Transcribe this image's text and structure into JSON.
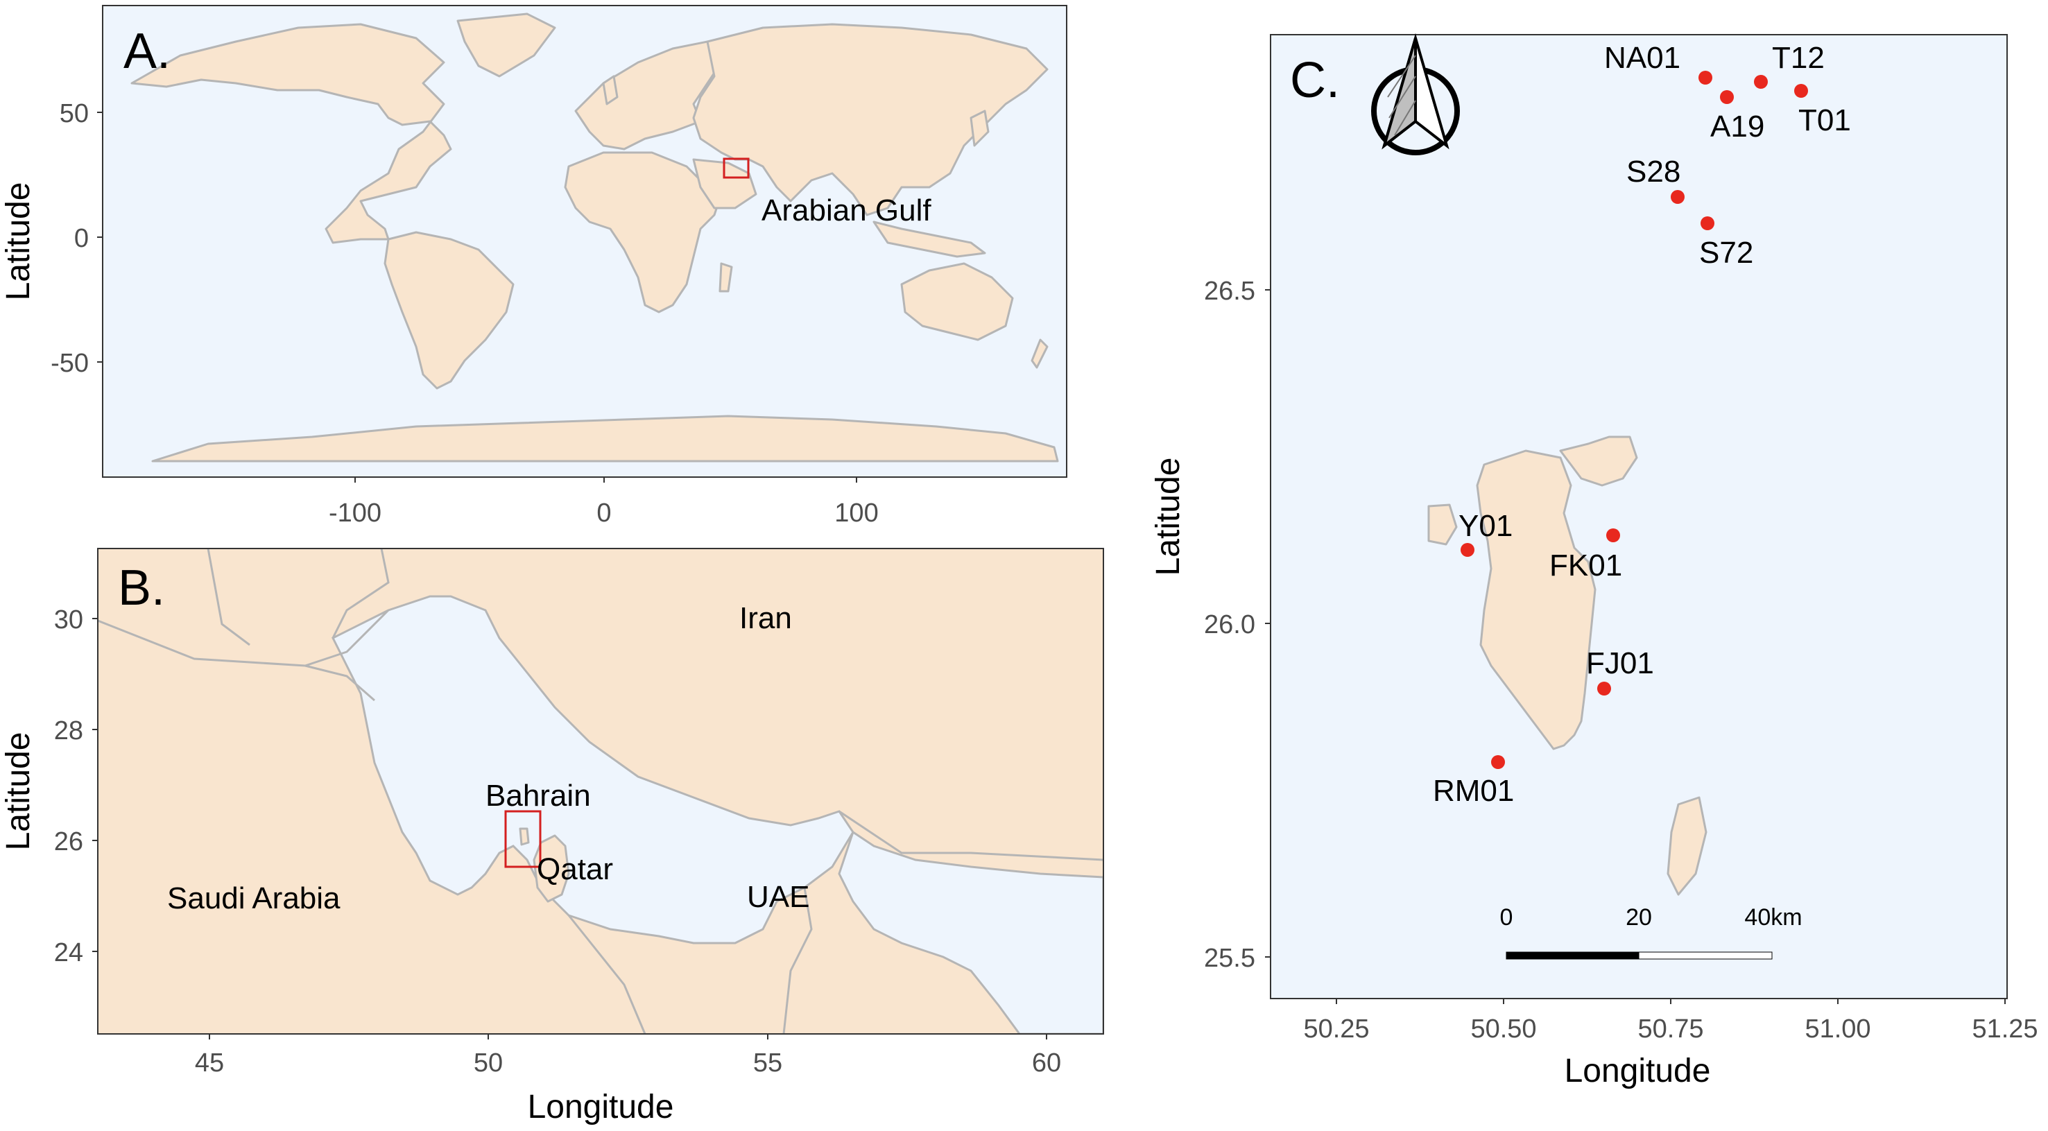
{
  "colors": {
    "land": "#f9e5cf",
    "sea": "#eef5fd",
    "border": "#b5b5b5",
    "station": "#e8281e",
    "box": "#d42020"
  },
  "panelA": {
    "label": "A.",
    "ylabel": "Latitude",
    "xticks": [
      "-100",
      "0",
      "100"
    ],
    "yticks": [
      "50",
      "0",
      "-50"
    ],
    "region_label": "Arabian Gulf"
  },
  "panelB": {
    "label": "B.",
    "ylabel": "Latitude",
    "xlabel": "Longitude",
    "xticks": [
      "45",
      "50",
      "55",
      "60"
    ],
    "yticks": [
      "30",
      "28",
      "26",
      "24"
    ],
    "countries": {
      "iran": "Iran",
      "bahrain": "Bahrain",
      "qatar": "Qatar",
      "saudi": "Saudi Arabia",
      "uae": "UAE"
    }
  },
  "panelC": {
    "label": "C.",
    "ylabel": "Latitude",
    "xlabel": "Longitude",
    "xticks": [
      "50.25",
      "50.50",
      "50.75",
      "51.00",
      "51.25"
    ],
    "yticks": [
      "26.5",
      "26.0",
      "25.5"
    ],
    "stations": [
      {
        "name": "NA01",
        "lon": 50.8,
        "lat": 26.82
      },
      {
        "name": "T12",
        "lon": 50.88,
        "lat": 26.81
      },
      {
        "name": "A19",
        "lon": 50.83,
        "lat": 26.79
      },
      {
        "name": "T01",
        "lon": 50.94,
        "lat": 26.8
      },
      {
        "name": "S28",
        "lon": 50.76,
        "lat": 26.64
      },
      {
        "name": "S72",
        "lon": 50.8,
        "lat": 26.6
      },
      {
        "name": "Y01",
        "lon": 50.44,
        "lat": 26.11
      },
      {
        "name": "FK01",
        "lon": 50.66,
        "lat": 26.13
      },
      {
        "name": "FJ01",
        "lon": 50.65,
        "lat": 25.89
      },
      {
        "name": "RM01",
        "lon": 50.49,
        "lat": 25.79
      }
    ],
    "scalebar": {
      "labels": [
        "0",
        "20",
        "40km"
      ]
    },
    "north_arrow": "north-arrow"
  }
}
